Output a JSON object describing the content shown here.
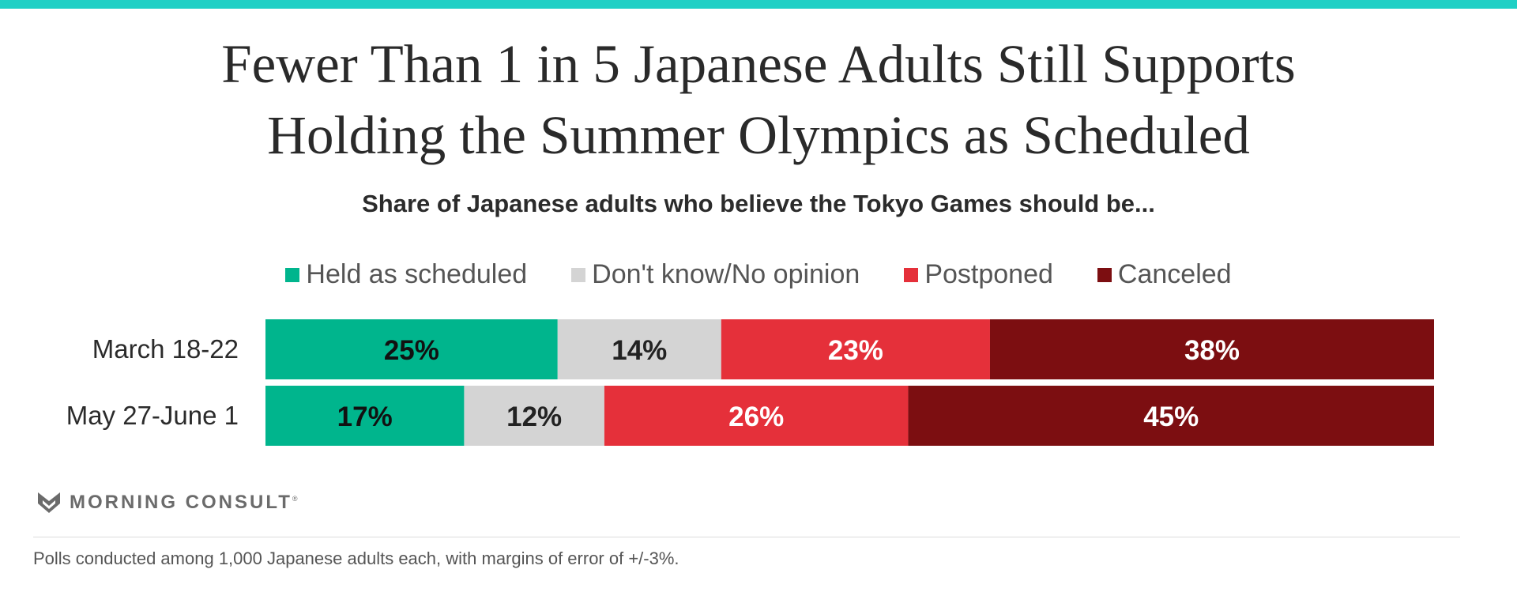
{
  "header": {
    "title_line1": "Fewer Than 1 in 5 Japanese Adults Still Supports",
    "title_line2": "Holding the Summer Olympics as Scheduled",
    "subtitle": "Share of Japanese adults who believe the Tokyo Games should be..."
  },
  "legend": [
    {
      "label": "Held as scheduled",
      "color": "#00b58d"
    },
    {
      "label": "Don't know/No opinion",
      "color": "#d4d4d4"
    },
    {
      "label": "Postponed",
      "color": "#e5303a"
    },
    {
      "label": "Canceled",
      "color": "#7c0e11"
    }
  ],
  "chart_data": {
    "type": "bar",
    "orientation": "horizontal",
    "stacked": true,
    "title": "Fewer Than 1 in 5 Japanese Adults Still Supports Holding the Summer Olympics as Scheduled",
    "subtitle": "Share of Japanese adults who believe the Tokyo Games should be...",
    "categories": [
      "March 18-22",
      "May 27-June 1"
    ],
    "series": [
      {
        "name": "Held as scheduled",
        "values": [
          25,
          17
        ],
        "color": "#00b58d",
        "label_color": "#111111"
      },
      {
        "name": "Don't know/No opinion",
        "values": [
          14,
          12
        ],
        "color": "#d4d4d4",
        "label_color": "#222222"
      },
      {
        "name": "Postponed",
        "values": [
          23,
          26
        ],
        "color": "#e5303a",
        "label_color": "#ffffff"
      },
      {
        "name": "Canceled",
        "values": [
          38,
          45
        ],
        "color": "#7c0e11",
        "label_color": "#ffffff"
      }
    ],
    "value_suffix": "%",
    "legend_position": "top-center",
    "grid": false,
    "axes_visible": false
  },
  "branding": {
    "logo_text": "MORNING CONSULT",
    "logo_mark": "®",
    "logo_icon": "morning-consult-m-icon"
  },
  "footnote": "Polls conducted among 1,000 Japanese adults each, with margins of error of +/-3%."
}
